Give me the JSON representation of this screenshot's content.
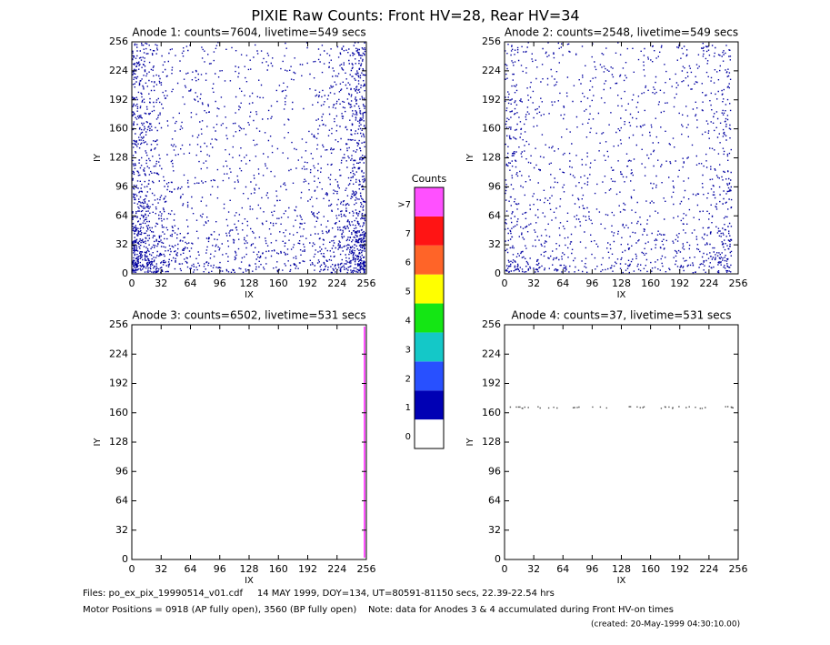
{
  "chart_data": [
    {
      "type": "scatter",
      "title": "Anode 1: counts=7604, livetime=549 secs",
      "x_label": "IX",
      "y_label": "IY",
      "xlim": [
        0,
        256
      ],
      "ylim": [
        0,
        256
      ],
      "xticks": [
        0,
        32,
        64,
        96,
        128,
        160,
        192,
        224,
        256
      ],
      "yticks": [
        0,
        32,
        64,
        96,
        128,
        160,
        192,
        224,
        256
      ]
    },
    {
      "type": "scatter",
      "title": "Anode 2: counts=2548, livetime=549 secs",
      "x_label": "IX",
      "y_label": "IY",
      "xlim": [
        0,
        256
      ],
      "ylim": [
        0,
        256
      ],
      "xticks": [
        0,
        32,
        64,
        96,
        128,
        160,
        192,
        224,
        256
      ],
      "yticks": [
        0,
        32,
        64,
        96,
        128,
        160,
        192,
        224,
        256
      ]
    },
    {
      "type": "scatter",
      "title": "Anode 3: counts=6502, livetime=531 secs",
      "x_label": "IX",
      "y_label": "IY",
      "xlim": [
        0,
        256
      ],
      "ylim": [
        0,
        256
      ],
      "xticks": [
        0,
        32,
        64,
        96,
        128,
        160,
        192,
        224,
        256
      ],
      "yticks": [
        0,
        32,
        64,
        96,
        128,
        160,
        192,
        224,
        256
      ]
    },
    {
      "type": "scatter",
      "title": "Anode 4: counts=37, livetime=531 secs",
      "x_label": "IX",
      "y_label": "IY",
      "xlim": [
        0,
        256
      ],
      "ylim": [
        0,
        256
      ],
      "xticks": [
        0,
        32,
        64,
        96,
        128,
        160,
        192,
        224,
        256
      ],
      "yticks": [
        0,
        32,
        64,
        96,
        128,
        160,
        192,
        224,
        256
      ]
    }
  ],
  "title": "PIXIE Raw Counts:  Front HV=28, Rear HV=34",
  "colorbar": {
    "title": "Counts",
    "levels": [
      {
        "label": "0",
        "color": "#ffffff"
      },
      {
        "label": "1",
        "color": "#0000b4"
      },
      {
        "label": "2",
        "color": "#2850ff"
      },
      {
        "label": "3",
        "color": "#14c8c8"
      },
      {
        "label": "4",
        "color": "#14e614"
      },
      {
        "label": "5",
        "color": "#ffff00"
      },
      {
        "label": "6",
        "color": "#ff6428"
      },
      {
        "label": "7",
        "color": "#ff1414"
      },
      {
        "label": ">7",
        "color": "#ff50ff"
      }
    ]
  },
  "footer": {
    "files": "Files: po_ex_pix_19990514_v01.cdf     14 MAY 1999, DOY=134, UT=80591-81150 secs, 22.39-22.54 hrs",
    "motor": "Motor Positions = 0918 (AP fully open), 3560 (BP fully open)    Note: data for Anodes 3 & 4 accumulated during Front HV-on times",
    "created": "(created: 20-May-1999 04:30:10.00)"
  }
}
